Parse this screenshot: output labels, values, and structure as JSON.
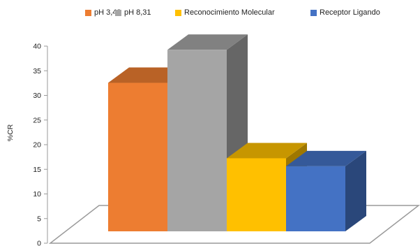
{
  "chart_data": {
    "type": "bar",
    "title": "",
    "xlabel": "",
    "ylabel": "%CR",
    "ylim": [
      0,
      40
    ],
    "yticks": [
      0,
      5,
      10,
      15,
      20,
      25,
      30,
      35,
      40
    ],
    "grid": false,
    "legend_position": "top",
    "series": [
      {
        "name": "pH 3,42",
        "value": 31.5,
        "color": "#ED7D31"
      },
      {
        "name": "pH 8,31",
        "value": 38.5,
        "color": "#A5A5A5"
      },
      {
        "name": "Reconocimiento Molecular",
        "value": 15.5,
        "color": "#FFC000"
      },
      {
        "name": "Receptor Ligando",
        "value": 13.8,
        "color": "#4472C4"
      }
    ]
  }
}
